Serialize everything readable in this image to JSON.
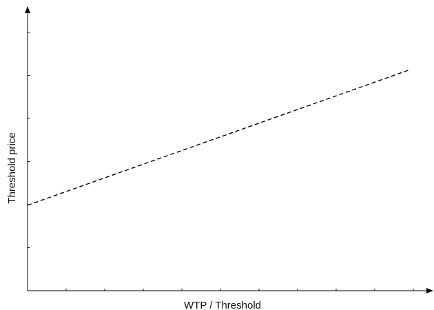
{
  "chart_data": {
    "type": "line",
    "title": "",
    "xlabel": "WTP / Threshold",
    "ylabel": "Threshold price",
    "xlim": [
      0,
      1
    ],
    "ylim": [
      0,
      1
    ],
    "x_tick_count": 10,
    "y_tick_count": 6,
    "tick_labels_shown": false,
    "grid": false,
    "legend": "none",
    "series": [
      {
        "style": "dashed",
        "color": "#000000",
        "x": [
          0,
          1
        ],
        "y": [
          0.34,
          0.88
        ]
      }
    ]
  }
}
